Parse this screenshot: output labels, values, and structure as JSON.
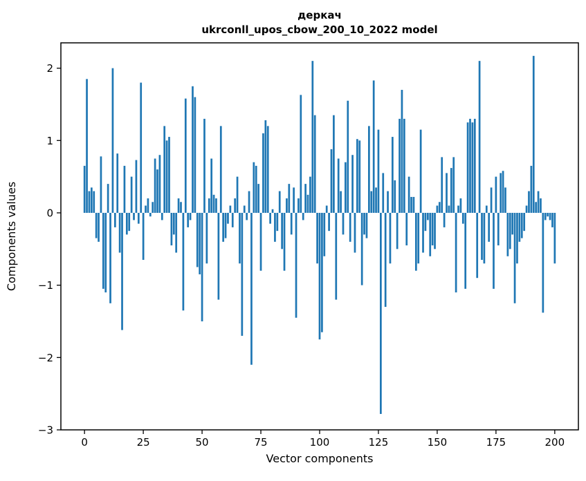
{
  "figure": {
    "title_line1": "деркач",
    "title_line2": "ukrconll_upos_cbow_200_10_2022 model",
    "xlabel": "Vector components",
    "ylabel": "Components values"
  },
  "chart_data": {
    "type": "bar",
    "title": "деркач — ukrconll_upos_cbow_200_10_2022 model",
    "xlabel": "Vector components",
    "ylabel": "Components values",
    "bar_color": "#1f77b4",
    "grid": false,
    "legend": "none",
    "xlim": [
      -10.05,
      210.05
    ],
    "ylim": [
      -3,
      2.35
    ],
    "xticks": [
      0,
      25,
      50,
      75,
      100,
      125,
      150,
      175,
      200
    ],
    "yticks": [
      -3,
      -2,
      -1,
      0,
      1,
      2
    ],
    "x_start": 0,
    "values": [
      0.65,
      1.85,
      0.3,
      0.35,
      0.3,
      -0.35,
      -0.4,
      0.78,
      -1.05,
      -1.1,
      0.4,
      -1.25,
      2.0,
      -0.2,
      0.82,
      -0.55,
      -1.62,
      0.65,
      -0.3,
      -0.25,
      0.5,
      -0.1,
      0.73,
      -0.15,
      1.8,
      -0.65,
      0.1,
      0.2,
      -0.05,
      0.15,
      0.75,
      0.6,
      0.8,
      -0.1,
      1.2,
      1.0,
      1.05,
      -0.45,
      -0.3,
      -0.55,
      0.2,
      0.15,
      -1.35,
      1.58,
      -0.2,
      -0.1,
      1.75,
      1.6,
      -0.75,
      -0.85,
      -1.5,
      1.3,
      -0.7,
      0.2,
      0.75,
      0.25,
      0.2,
      -1.2,
      1.2,
      -0.4,
      -0.35,
      -0.15,
      0.1,
      -0.2,
      0.2,
      0.5,
      -0.7,
      -1.7,
      0.1,
      -0.1,
      0.3,
      -2.1,
      0.7,
      0.65,
      0.4,
      -0.8,
      1.1,
      1.28,
      1.2,
      -0.15,
      0.05,
      -0.4,
      -0.25,
      0.3,
      -0.5,
      -0.8,
      0.2,
      0.4,
      -0.3,
      0.35,
      -1.45,
      0.2,
      1.63,
      -0.1,
      0.4,
      0.25,
      0.5,
      2.1,
      1.35,
      -0.7,
      -1.75,
      -1.65,
      -0.6,
      0.1,
      -0.25,
      0.88,
      1.35,
      -1.2,
      0.75,
      0.3,
      -0.3,
      0.7,
      1.55,
      -0.4,
      0.8,
      -0.55,
      1.02,
      1.0,
      -1.0,
      -0.3,
      -0.35,
      1.2,
      0.3,
      1.83,
      0.35,
      1.15,
      -2.78,
      0.55,
      -1.3,
      0.3,
      -0.7,
      1.05,
      0.45,
      -0.5,
      1.3,
      1.7,
      1.3,
      -0.45,
      0.5,
      0.22,
      0.22,
      -0.8,
      -0.7,
      1.15,
      -0.55,
      -0.25,
      -0.1,
      -0.6,
      -0.45,
      -0.5,
      0.1,
      0.15,
      0.77,
      -0.2,
      0.55,
      0.1,
      0.62,
      0.77,
      -1.1,
      0.1,
      0.2,
      -0.15,
      -1.05,
      1.25,
      1.3,
      1.25,
      1.3,
      -0.9,
      2.1,
      -0.65,
      -0.7,
      0.1,
      -0.4,
      0.35,
      -1.05,
      0.5,
      -0.45,
      0.55,
      0.58,
      0.35,
      -0.6,
      -0.5,
      -0.3,
      -1.25,
      -0.7,
      -0.4,
      -0.35,
      -0.25,
      0.1,
      0.3,
      0.65,
      2.17,
      0.15,
      0.3,
      0.2,
      -1.38,
      -0.1,
      -0.05,
      -0.1,
      -0.2,
      -0.7
    ]
  }
}
